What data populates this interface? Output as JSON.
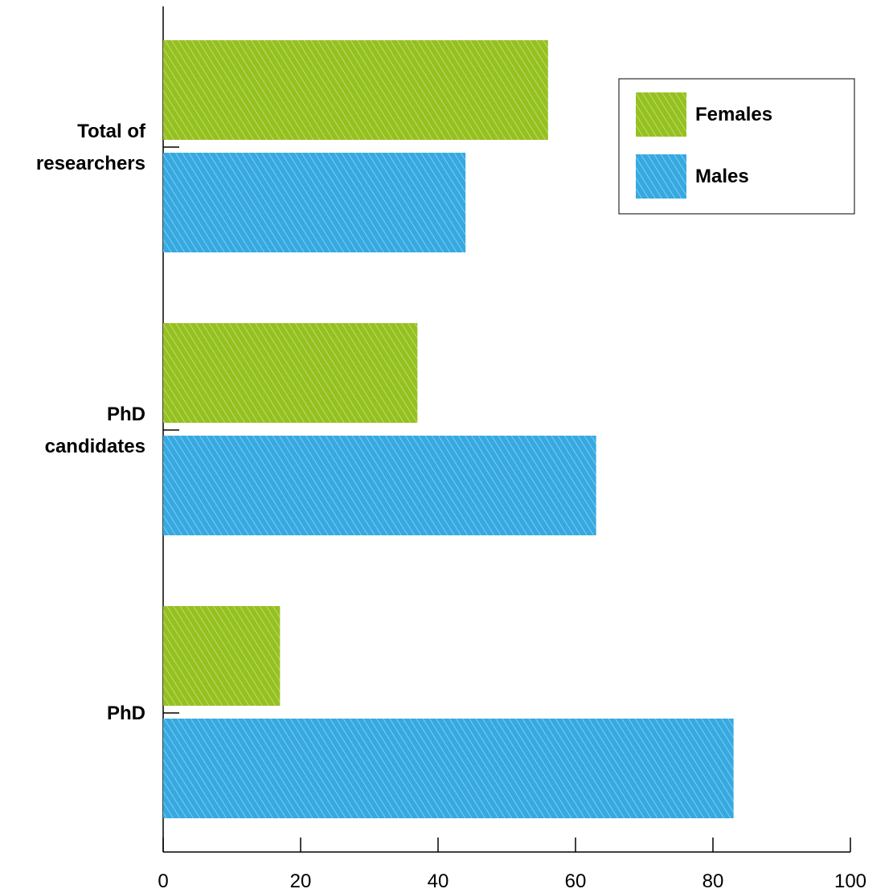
{
  "chart_data": {
    "type": "bar",
    "orientation": "horizontal",
    "categories": [
      "Total of researchers",
      "PhD candidates",
      "PhD"
    ],
    "category_label_lines": [
      [
        "Total of",
        "researchers"
      ],
      [
        "PhD",
        "candidates"
      ],
      [
        "PhD"
      ]
    ],
    "series": [
      {
        "name": "Females",
        "color": "#95c11f",
        "values": [
          56,
          37,
          17
        ]
      },
      {
        "name": "Males",
        "color": "#36a9e1",
        "values": [
          44,
          63,
          83
        ]
      }
    ],
    "xlim": [
      0,
      100
    ],
    "xticks": [
      0,
      20,
      40,
      60,
      80,
      100
    ],
    "xtick_labels": [
      "0",
      "20",
      "40",
      "60",
      "80",
      "100"
    ],
    "title": "",
    "xlabel": "",
    "ylabel": "",
    "grid": false,
    "legend_position": "top-right",
    "bar_style": "hatched"
  }
}
